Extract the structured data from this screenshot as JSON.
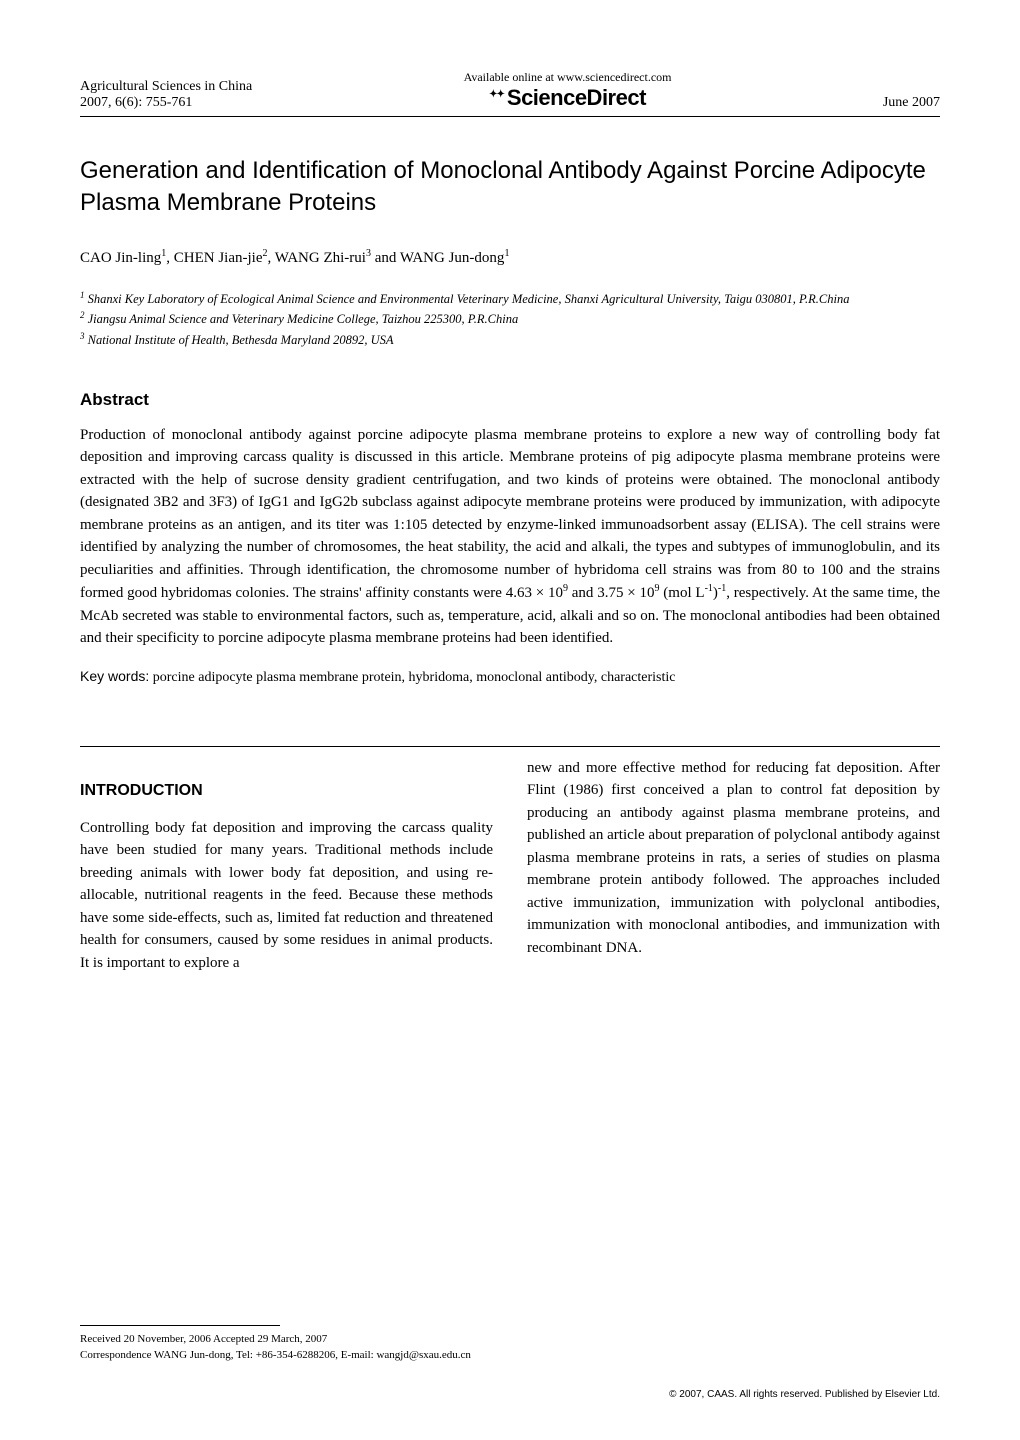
{
  "header": {
    "journal": "Agricultural Sciences in China",
    "citation": "2007, 6(6): 755-761",
    "available_online": "Available online at www.sciencedirect.com",
    "science_direct": "ScienceDirect",
    "date": "June 2007"
  },
  "title": "Generation and Identification of Monoclonal Antibody Against Porcine Adipocyte Plasma Membrane Proteins",
  "authors_html": "CAO Jin-ling<sup>1</sup>, CHEN Jian-jie<sup>2</sup>, WANG Zhi-rui<sup>3</sup> and WANG Jun-dong<sup>1</sup>",
  "affiliations": [
    "Shanxi Key Laboratory of Ecological Animal Science and Environmental Veterinary Medicine, Shanxi Agricultural University, Taigu 030801, P.R.China",
    "Jiangsu Animal Science and Veterinary Medicine College, Taizhou 225300, P.R.China",
    "National Institute of Health, Bethesda Maryland 20892, USA"
  ],
  "abstract": {
    "heading": "Abstract",
    "body_html": "Production of monoclonal antibody against porcine adipocyte plasma membrane proteins to explore a new way of controlling body fat deposition and improving carcass quality is discussed in this article. Membrane proteins of pig adipocyte plasma membrane proteins were extracted with the help of sucrose density gradient centrifugation, and two kinds of proteins were obtained. The monoclonal antibody (designated 3B2 and 3F3) of IgG1 and IgG2b subclass against adipocyte membrane proteins were produced by immunization, with adipocyte membrane proteins as an antigen, and its titer was 1:105 detected by enzyme-linked immunoadsorbent assay (ELISA). The cell strains were identified by analyzing the number of chromosomes, the heat stability, the acid and alkali, the types and subtypes of immunoglobulin, and its peculiarities and affinities. Through identification, the chromosome number of hybridoma cell strains was from 80 to 100 and the strains formed good hybridomas colonies. The strains' affinity constants were 4.63 × 10<sup>9</sup> and 3.75 × 10<sup>9</sup> (mol L<sup>-1</sup>)<sup>-1</sup>, respectively. At the same time, the McAb secreted was stable to environmental factors, such as, temperature, acid, alkali and so on. The monoclonal antibodies had been obtained and their specificity to porcine adipocyte plasma membrane proteins had been identified."
  },
  "keywords": {
    "label": "Key words:",
    "text": "porcine adipocyte plasma membrane protein, hybridoma, monoclonal antibody, characteristic"
  },
  "introduction": {
    "heading": "INTRODUCTION",
    "col1": "Controlling body fat deposition and improving the carcass quality have been studied for many years. Traditional methods include breeding animals with lower body fat deposition, and using re-allocable, nutritional reagents in the feed. Because these methods have some side-effects, such as, limited fat reduction and threatened health for consumers, caused by some residues in animal products. It is important to explore a",
    "col2": "new and more effective method for reducing fat deposition. After Flint (1986) first conceived a plan to control fat deposition by producing an antibody against plasma membrane proteins, and published an article about preparation of polyclonal antibody against plasma membrane proteins in rats, a series of studies on plasma membrane protein antibody followed. The approaches included active immunization, immunization with polyclonal antibodies, immunization with monoclonal antibodies, and immunization with recombinant DNA."
  },
  "footer": {
    "received": "Received 20 November, 2006   Accepted 29 March, 2007",
    "correspondence": "Correspondence WANG Jun-dong, Tel: +86-354-6288206, E-mail: wangjd@sxau.edu.cn",
    "copyright": "© 2007, CAAS. All rights reserved. Published by Elsevier Ltd."
  }
}
